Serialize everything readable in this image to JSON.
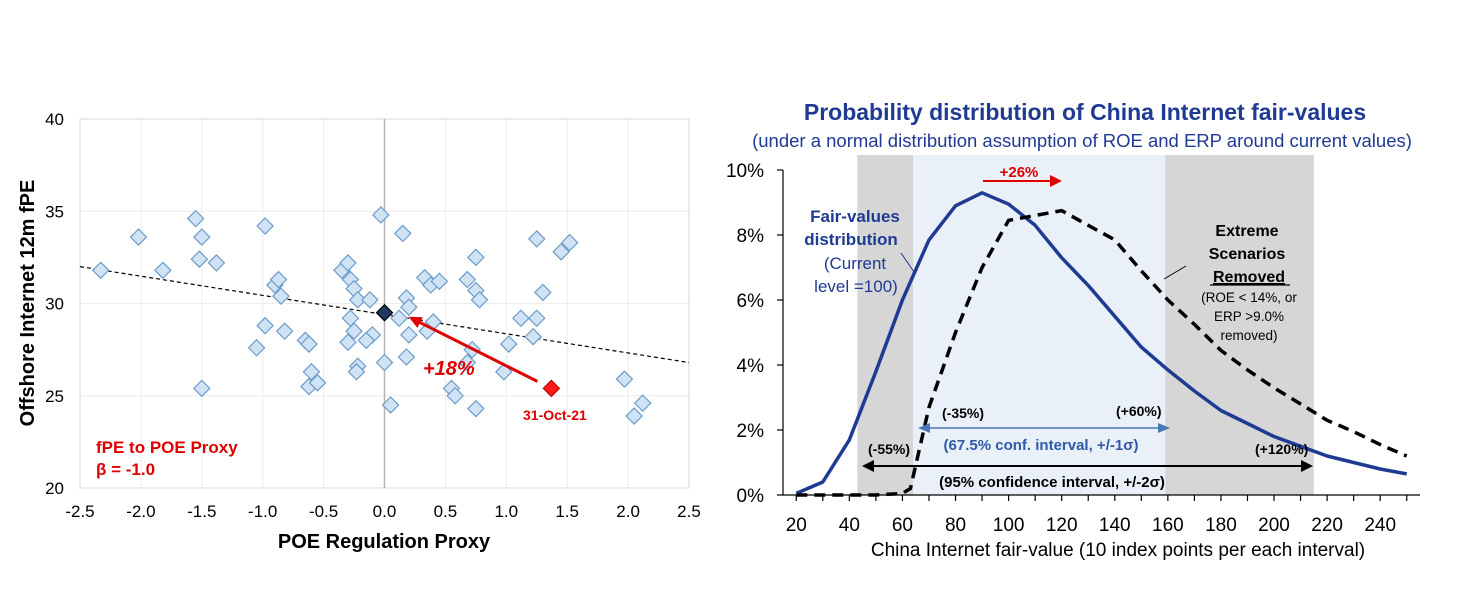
{
  "chart_data": [
    {
      "type": "scatter",
      "title": "",
      "xlabel": "POE Regulation Proxy",
      "ylabel": "Offshore Internet 12m fPE",
      "xlim": [
        -2.5,
        2.5
      ],
      "ylim": [
        20,
        40
      ],
      "xticks": [
        "-2.5",
        "-2.0",
        "-1.5",
        "-1.0",
        "-0.5",
        "0.0",
        "0.5",
        "1.0",
        "1.5",
        "2.0",
        "2.5"
      ],
      "yticks": [
        "20",
        "25",
        "30",
        "35",
        "40"
      ],
      "points": [
        [
          -2.33,
          31.8
        ],
        [
          -2.02,
          33.6
        ],
        [
          -1.82,
          31.8
        ],
        [
          -1.55,
          34.6
        ],
        [
          -1.5,
          33.6
        ],
        [
          -1.52,
          32.4
        ],
        [
          -1.38,
          32.2
        ],
        [
          -1.5,
          25.4
        ],
        [
          -0.98,
          34.2
        ],
        [
          -0.9,
          31.0
        ],
        [
          -0.87,
          31.3
        ],
        [
          -0.85,
          30.4
        ],
        [
          -0.82,
          28.5
        ],
        [
          -0.98,
          28.8
        ],
        [
          -1.05,
          27.6
        ],
        [
          -0.65,
          28.0
        ],
        [
          -0.62,
          27.8
        ],
        [
          -0.6,
          26.3
        ],
        [
          -0.62,
          25.5
        ],
        [
          -0.55,
          25.7
        ],
        [
          -0.35,
          31.8
        ],
        [
          -0.3,
          32.2
        ],
        [
          -0.28,
          31.3
        ],
        [
          -0.25,
          30.8
        ],
        [
          -0.22,
          30.2
        ],
        [
          -0.28,
          29.2
        ],
        [
          -0.3,
          27.9
        ],
        [
          -0.25,
          28.5
        ],
        [
          -0.22,
          26.6
        ],
        [
          -0.23,
          26.3
        ],
        [
          -0.12,
          30.2
        ],
        [
          -0.1,
          28.3
        ],
        [
          -0.15,
          28.0
        ],
        [
          -0.03,
          34.8
        ],
        [
          0.0,
          26.8
        ],
        [
          0.05,
          24.5
        ],
        [
          0.15,
          33.8
        ],
        [
          0.18,
          30.3
        ],
        [
          0.12,
          29.2
        ],
        [
          0.2,
          29.8
        ],
        [
          0.18,
          27.1
        ],
        [
          0.2,
          28.3
        ],
        [
          0.33,
          31.4
        ],
        [
          0.38,
          31.0
        ],
        [
          0.45,
          31.2
        ],
        [
          0.4,
          29.0
        ],
        [
          0.35,
          28.5
        ],
        [
          0.55,
          25.4
        ],
        [
          0.58,
          25.0
        ],
        [
          0.68,
          31.3
        ],
        [
          0.75,
          32.5
        ],
        [
          0.75,
          30.7
        ],
        [
          0.78,
          30.2
        ],
        [
          0.72,
          27.5
        ],
        [
          0.68,
          26.8
        ],
        [
          0.75,
          24.3
        ],
        [
          0.98,
          26.3
        ],
        [
          1.02,
          27.8
        ],
        [
          1.12,
          29.2
        ],
        [
          1.22,
          28.2
        ],
        [
          1.25,
          29.2
        ],
        [
          1.25,
          33.5
        ],
        [
          1.3,
          30.6
        ],
        [
          1.45,
          32.8
        ],
        [
          1.52,
          33.3
        ],
        [
          1.97,
          25.9
        ],
        [
          2.05,
          23.9
        ],
        [
          2.12,
          24.6
        ]
      ],
      "current_point": [
        0.0,
        29.5
      ],
      "highlight_point": [
        1.37,
        25.4
      ],
      "regression_line": [
        [
          -2.5,
          32.0
        ],
        [
          2.5,
          26.8
        ]
      ],
      "labels": {
        "arrow_label": "+18%",
        "date_label": "31-Oct-21",
        "proxy_title": "fPE to POE Proxy",
        "beta": "β = -1.0"
      }
    },
    {
      "type": "line",
      "title": "Probability distribution of China Internet fair-values",
      "subtitle": "(under a normal distribution assumption of ROE and ERP around current values)",
      "xlabel": "China Internet fair-value (10 index points per each interval)",
      "xlim": [
        15,
        255
      ],
      "ylim": [
        0,
        10
      ],
      "x_ticks": [
        20,
        40,
        60,
        80,
        100,
        120,
        140,
        160,
        180,
        200,
        220,
        240
      ],
      "y_ticks": [
        "0%",
        "2%",
        "4%",
        "6%",
        "8%",
        "10%"
      ],
      "shaded_bands": [
        {
          "from": 43,
          "to": 64,
          "color": "#d6d6d6"
        },
        {
          "from": 64,
          "to": 159,
          "color": "#eaf0f8"
        },
        {
          "from": 159,
          "to": 215,
          "color": "#d6d6d6"
        }
      ],
      "series": [
        {
          "name": "Fair-values distribution (Current level =100)",
          "style": "solid",
          "color": "#1f3a93",
          "x": [
            20,
            30,
            40,
            50,
            60,
            70,
            80,
            90,
            100,
            110,
            120,
            130,
            140,
            150,
            160,
            170,
            180,
            190,
            200,
            210,
            220,
            230,
            240,
            250
          ],
          "y": [
            0.05,
            0.4,
            1.7,
            3.8,
            6.0,
            7.85,
            8.9,
            9.3,
            8.95,
            8.3,
            7.3,
            6.45,
            5.5,
            4.55,
            3.85,
            3.2,
            2.6,
            2.2,
            1.8,
            1.5,
            1.2,
            1.0,
            0.8,
            0.65
          ]
        },
        {
          "name": "Extreme Scenarios Removed",
          "style": "dashed",
          "color": "#000000",
          "x": [
            20,
            30,
            40,
            50,
            60,
            63,
            70,
            80,
            90,
            100,
            110,
            120,
            130,
            140,
            150,
            160,
            170,
            180,
            190,
            200,
            210,
            220,
            230,
            240,
            250
          ],
          "y": [
            0.0,
            0.0,
            0.0,
            0.0,
            0.05,
            0.2,
            2.7,
            5.0,
            7.0,
            8.45,
            8.6,
            8.75,
            8.3,
            7.85,
            6.9,
            6.0,
            5.25,
            4.45,
            3.85,
            3.3,
            2.8,
            2.3,
            1.95,
            1.55,
            1.2
          ]
        }
      ],
      "annotations": {
        "shift": "+26%",
        "dist_title": "Fair-values distribution",
        "dist_sub": "(Current level =100)",
        "extreme_1": "Extreme",
        "extreme_2": "Scenarios",
        "extreme_3": "Removed",
        "extreme_note": "(ROE < 14%, or ERP >9.0% removed)",
        "low_1sigma": "(-35%)",
        "high_1sigma": "(+60%)",
        "conf_1sigma": "(67.5% conf. interval, +/-1σ)",
        "low_2sigma": "(-55%)",
        "high_2sigma": "(+120%)",
        "conf_2sigma": "(95% confidence interval, +/-2σ)"
      }
    }
  ]
}
